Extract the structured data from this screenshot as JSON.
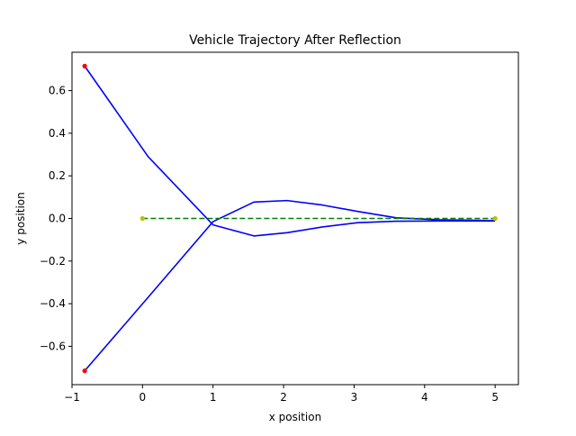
{
  "chart_data": {
    "type": "line",
    "title": "Vehicle Trajectory After Reflection",
    "xlabel": "x position",
    "ylabel": "y position",
    "xlim": [
      -1.0,
      5.33
    ],
    "ylim": [
      -0.78,
      0.78
    ],
    "xticks": [
      -1,
      0,
      1,
      2,
      3,
      4,
      5
    ],
    "xtick_labels": [
      "−1",
      "0",
      "1",
      "2",
      "3",
      "4",
      "5"
    ],
    "yticks": [
      -0.6,
      -0.4,
      -0.2,
      0.0,
      0.2,
      0.4,
      0.6
    ],
    "ytick_labels": [
      "−0.6",
      "−0.4",
      "−0.2",
      "0.0",
      "0.2",
      "0.4",
      "0.6"
    ],
    "grid": false,
    "series": [
      {
        "style": "solid",
        "color": "#0000ff",
        "x": [
          -0.82,
          0.08,
          1.0,
          1.58,
          2.05,
          2.55,
          3.05,
          3.6,
          4.2,
          5.0
        ],
        "y": [
          0.715,
          0.29,
          -0.03,
          -0.082,
          -0.067,
          -0.04,
          -0.02,
          -0.013,
          -0.012,
          -0.012
        ]
      },
      {
        "style": "solid",
        "color": "#0000ff",
        "x": [
          -0.82,
          0.08,
          1.0,
          1.58,
          2.05,
          2.55,
          3.05,
          3.6,
          4.2,
          5.0
        ],
        "y": [
          -0.715,
          -0.37,
          -0.015,
          0.077,
          0.084,
          0.063,
          0.033,
          0.003,
          -0.006,
          -0.01
        ]
      },
      {
        "style": "dashed",
        "color": "#008000",
        "x": [
          0.0,
          5.0
        ],
        "y": [
          0.0,
          0.0
        ]
      }
    ],
    "markers": [
      {
        "color": "#ff0000",
        "x": -0.82,
        "y": 0.715
      },
      {
        "color": "#ff0000",
        "x": -0.82,
        "y": -0.715
      },
      {
        "color": "#bfbf00",
        "x": 0.0,
        "y": 0.0
      },
      {
        "color": "#bfbf00",
        "x": 5.0,
        "y": 0.0
      }
    ]
  }
}
